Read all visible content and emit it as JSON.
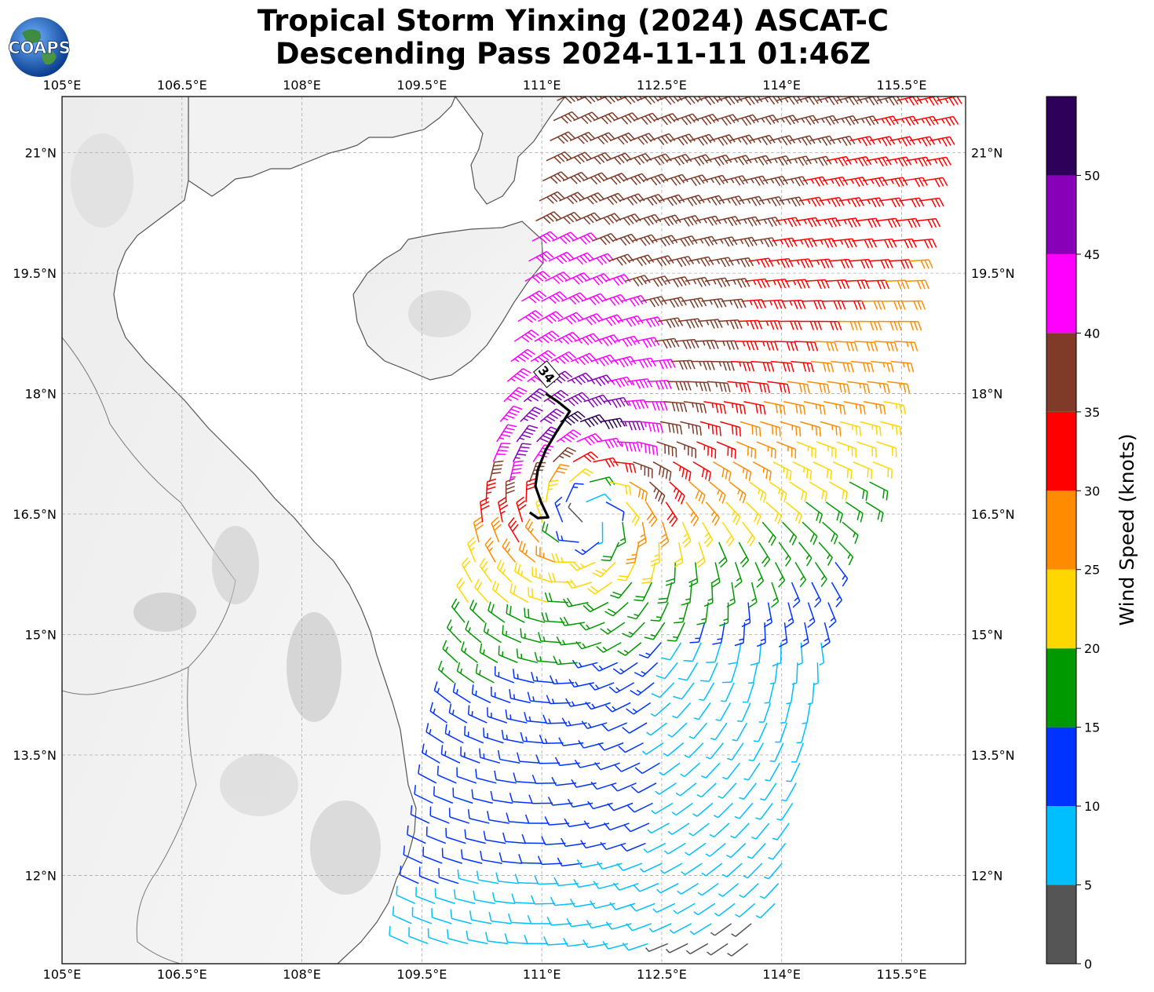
{
  "logo": {
    "text": "COAPS",
    "icon": "coaps-globe-logo"
  },
  "chart_data": {
    "type": "wind-barb-map",
    "title": "Tropical Storm Yinxing (2024) ASCAT-C",
    "subtitle": "Descending Pass 2024-11-11 01:46Z",
    "lon_ticks": [
      "105°E",
      "106.5°E",
      "108°E",
      "109.5°E",
      "111°E",
      "112.5°E",
      "114°E",
      "115.5°E"
    ],
    "lat_ticks": [
      "21°N",
      "19.5°N",
      "18°N",
      "16.5°N",
      "15°N",
      "13.5°N",
      "12°N"
    ],
    "xlim": [
      105,
      116.3
    ],
    "ylim": [
      10.9,
      21.7
    ],
    "grid": true,
    "storm_center": {
      "lon": 111.5,
      "lat": 16.75
    },
    "contour_label": "34",
    "contour_34kt": [
      [
        110.85,
        16.52
      ],
      [
        110.95,
        16.45
      ],
      [
        111.08,
        16.46
      ],
      [
        110.99,
        16.65
      ],
      [
        110.92,
        16.85
      ],
      [
        110.95,
        17.05
      ],
      [
        111.05,
        17.3
      ],
      [
        111.2,
        17.55
      ],
      [
        111.35,
        17.78
      ],
      [
        111.2,
        17.9
      ],
      [
        111.05,
        18.0
      ]
    ],
    "colorbar": {
      "label": "Wind Speed (knots)",
      "bounds": [
        0,
        5,
        10,
        15,
        20,
        25,
        30,
        35,
        40,
        45,
        50,
        55
      ],
      "tick_labels": [
        "0",
        "5",
        "10",
        "15",
        "20",
        "25",
        "30",
        "35",
        "40",
        "45",
        "50"
      ],
      "colors": [
        "#555555",
        "#00bfff",
        "#0033ff",
        "#009900",
        "#ffd700",
        "#ff8c00",
        "#ff0000",
        "#7f3a28",
        "#ff00ff",
        "#8800b8",
        "#2e0059"
      ]
    },
    "swath": {
      "lon_range": [
        109.3,
        116.2
      ],
      "lat_range": [
        11.0,
        21.7
      ],
      "east_edge": {
        "lat_low": 12.0,
        "lon_at_low": 114.0,
        "lat_high": 21.7,
        "lon_at_high": 116.2
      },
      "west_edge": {
        "lat_low": 11.0,
        "lon_at_low": 109.3,
        "lat_high": 21.7,
        "lon_at_high": 111.2
      }
    }
  }
}
